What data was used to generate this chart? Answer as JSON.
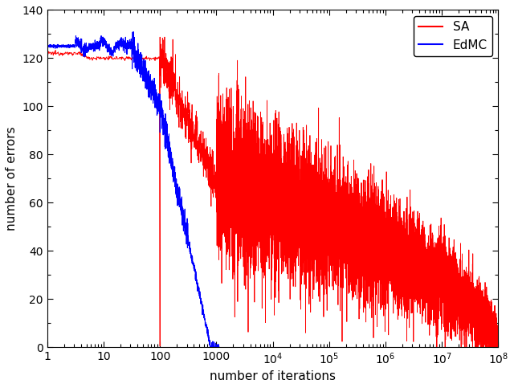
{
  "title": "",
  "xlabel": "number of iterations",
  "ylabel": "number of errors",
  "ylim": [
    0,
    140
  ],
  "yticks": [
    0,
    20,
    40,
    60,
    80,
    100,
    120,
    140
  ],
  "xticks_log": [
    1,
    10,
    100,
    1000,
    10000,
    100000,
    1000000,
    10000000,
    100000000
  ],
  "sa_color": "#ff0000",
  "edmc_color": "#0000ff",
  "background_color": "#ffffff",
  "legend_labels": [
    "SA",
    "EdMC"
  ]
}
